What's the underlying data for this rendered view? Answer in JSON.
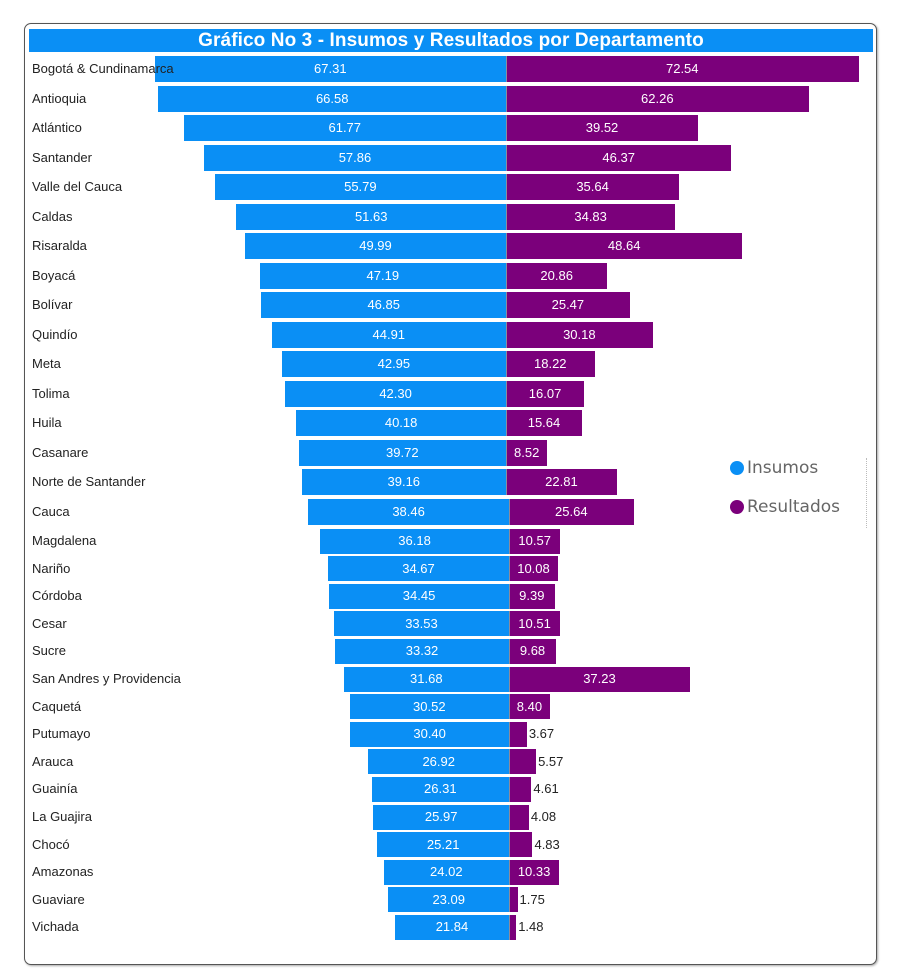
{
  "chart_data": {
    "type": "bar",
    "orientation": "horizontal-diverging",
    "title": "Gráfico No 3 - Insumos y Resultados por Departamento",
    "xlabel": "",
    "ylabel": "",
    "grid": false,
    "legend_position": "right",
    "categories": [
      "Bogotá & Cundinamarca",
      "Antioquia",
      "Atlántico",
      "Santander",
      "Valle del Cauca",
      "Caldas",
      "Risaralda",
      "Boyacá",
      "Bolívar",
      "Quindío",
      "Meta",
      "Tolima",
      "Huila",
      "Casanare",
      "Norte de Santander",
      "Cauca",
      "Magdalena",
      "Nariño",
      "Córdoba",
      "Cesar",
      "Sucre",
      "San Andres y Providencia",
      "Caquetá",
      "Putumayo",
      "Arauca",
      "Guainía",
      "La Guajira",
      "Chocó",
      "Amazonas",
      "Guaviare",
      "Vichada"
    ],
    "series": [
      {
        "name": "Insumos",
        "color": "#0a8ff5",
        "values": [
          67.31,
          66.58,
          61.77,
          57.86,
          55.79,
          51.63,
          49.99,
          47.19,
          46.85,
          44.91,
          42.95,
          42.3,
          40.18,
          39.72,
          39.16,
          38.46,
          36.18,
          34.67,
          34.45,
          33.53,
          33.32,
          31.68,
          30.52,
          30.4,
          26.92,
          26.31,
          25.97,
          25.21,
          24.02,
          23.09,
          21.84
        ],
        "labels": [
          "67.31",
          "66.58",
          "61.77",
          "57.86",
          "55.79",
          "51.63",
          "49.99",
          "47.19",
          "46.85",
          "44.91",
          "42.95",
          "42.30",
          "40.18",
          "39.72",
          "39.16",
          "38.46",
          "36.18",
          "34.67",
          "34.45",
          "33.53",
          "33.32",
          "31.68",
          "30.52",
          "30.40",
          "26.92",
          "26.31",
          "25.97",
          "25.21",
          "24.02",
          "23.09",
          "21.84"
        ]
      },
      {
        "name": "Resultados",
        "color": "#7b007b",
        "values": [
          72.54,
          62.26,
          39.52,
          46.37,
          35.64,
          34.83,
          48.64,
          20.86,
          25.47,
          30.18,
          18.22,
          16.07,
          15.64,
          8.52,
          22.81,
          25.64,
          10.57,
          10.08,
          9.39,
          10.51,
          9.68,
          37.23,
          8.4,
          3.67,
          5.57,
          4.61,
          4.08,
          4.83,
          10.33,
          1.75,
          1.48
        ],
        "labels": [
          "72.54",
          "62.26",
          "39.52",
          "46.37",
          "35.64",
          "34.83",
          "48.64",
          "20.86",
          "25.47",
          "30.18",
          "18.22",
          "16.07",
          "15.64",
          "8.52",
          "22.81",
          "25.64",
          "10.57",
          "10.08",
          "9.39",
          "10.51",
          "9.68",
          "37.23",
          "8.40",
          "3.67",
          "5.57",
          "4.61",
          "4.08",
          "4.83",
          "10.33",
          "1.75",
          "1.48"
        ]
      }
    ]
  },
  "legend": {
    "items": [
      {
        "label": "Insumos",
        "color": "#0a8ff5"
      },
      {
        "label": "Resultados",
        "color": "#7b007b"
      }
    ]
  }
}
